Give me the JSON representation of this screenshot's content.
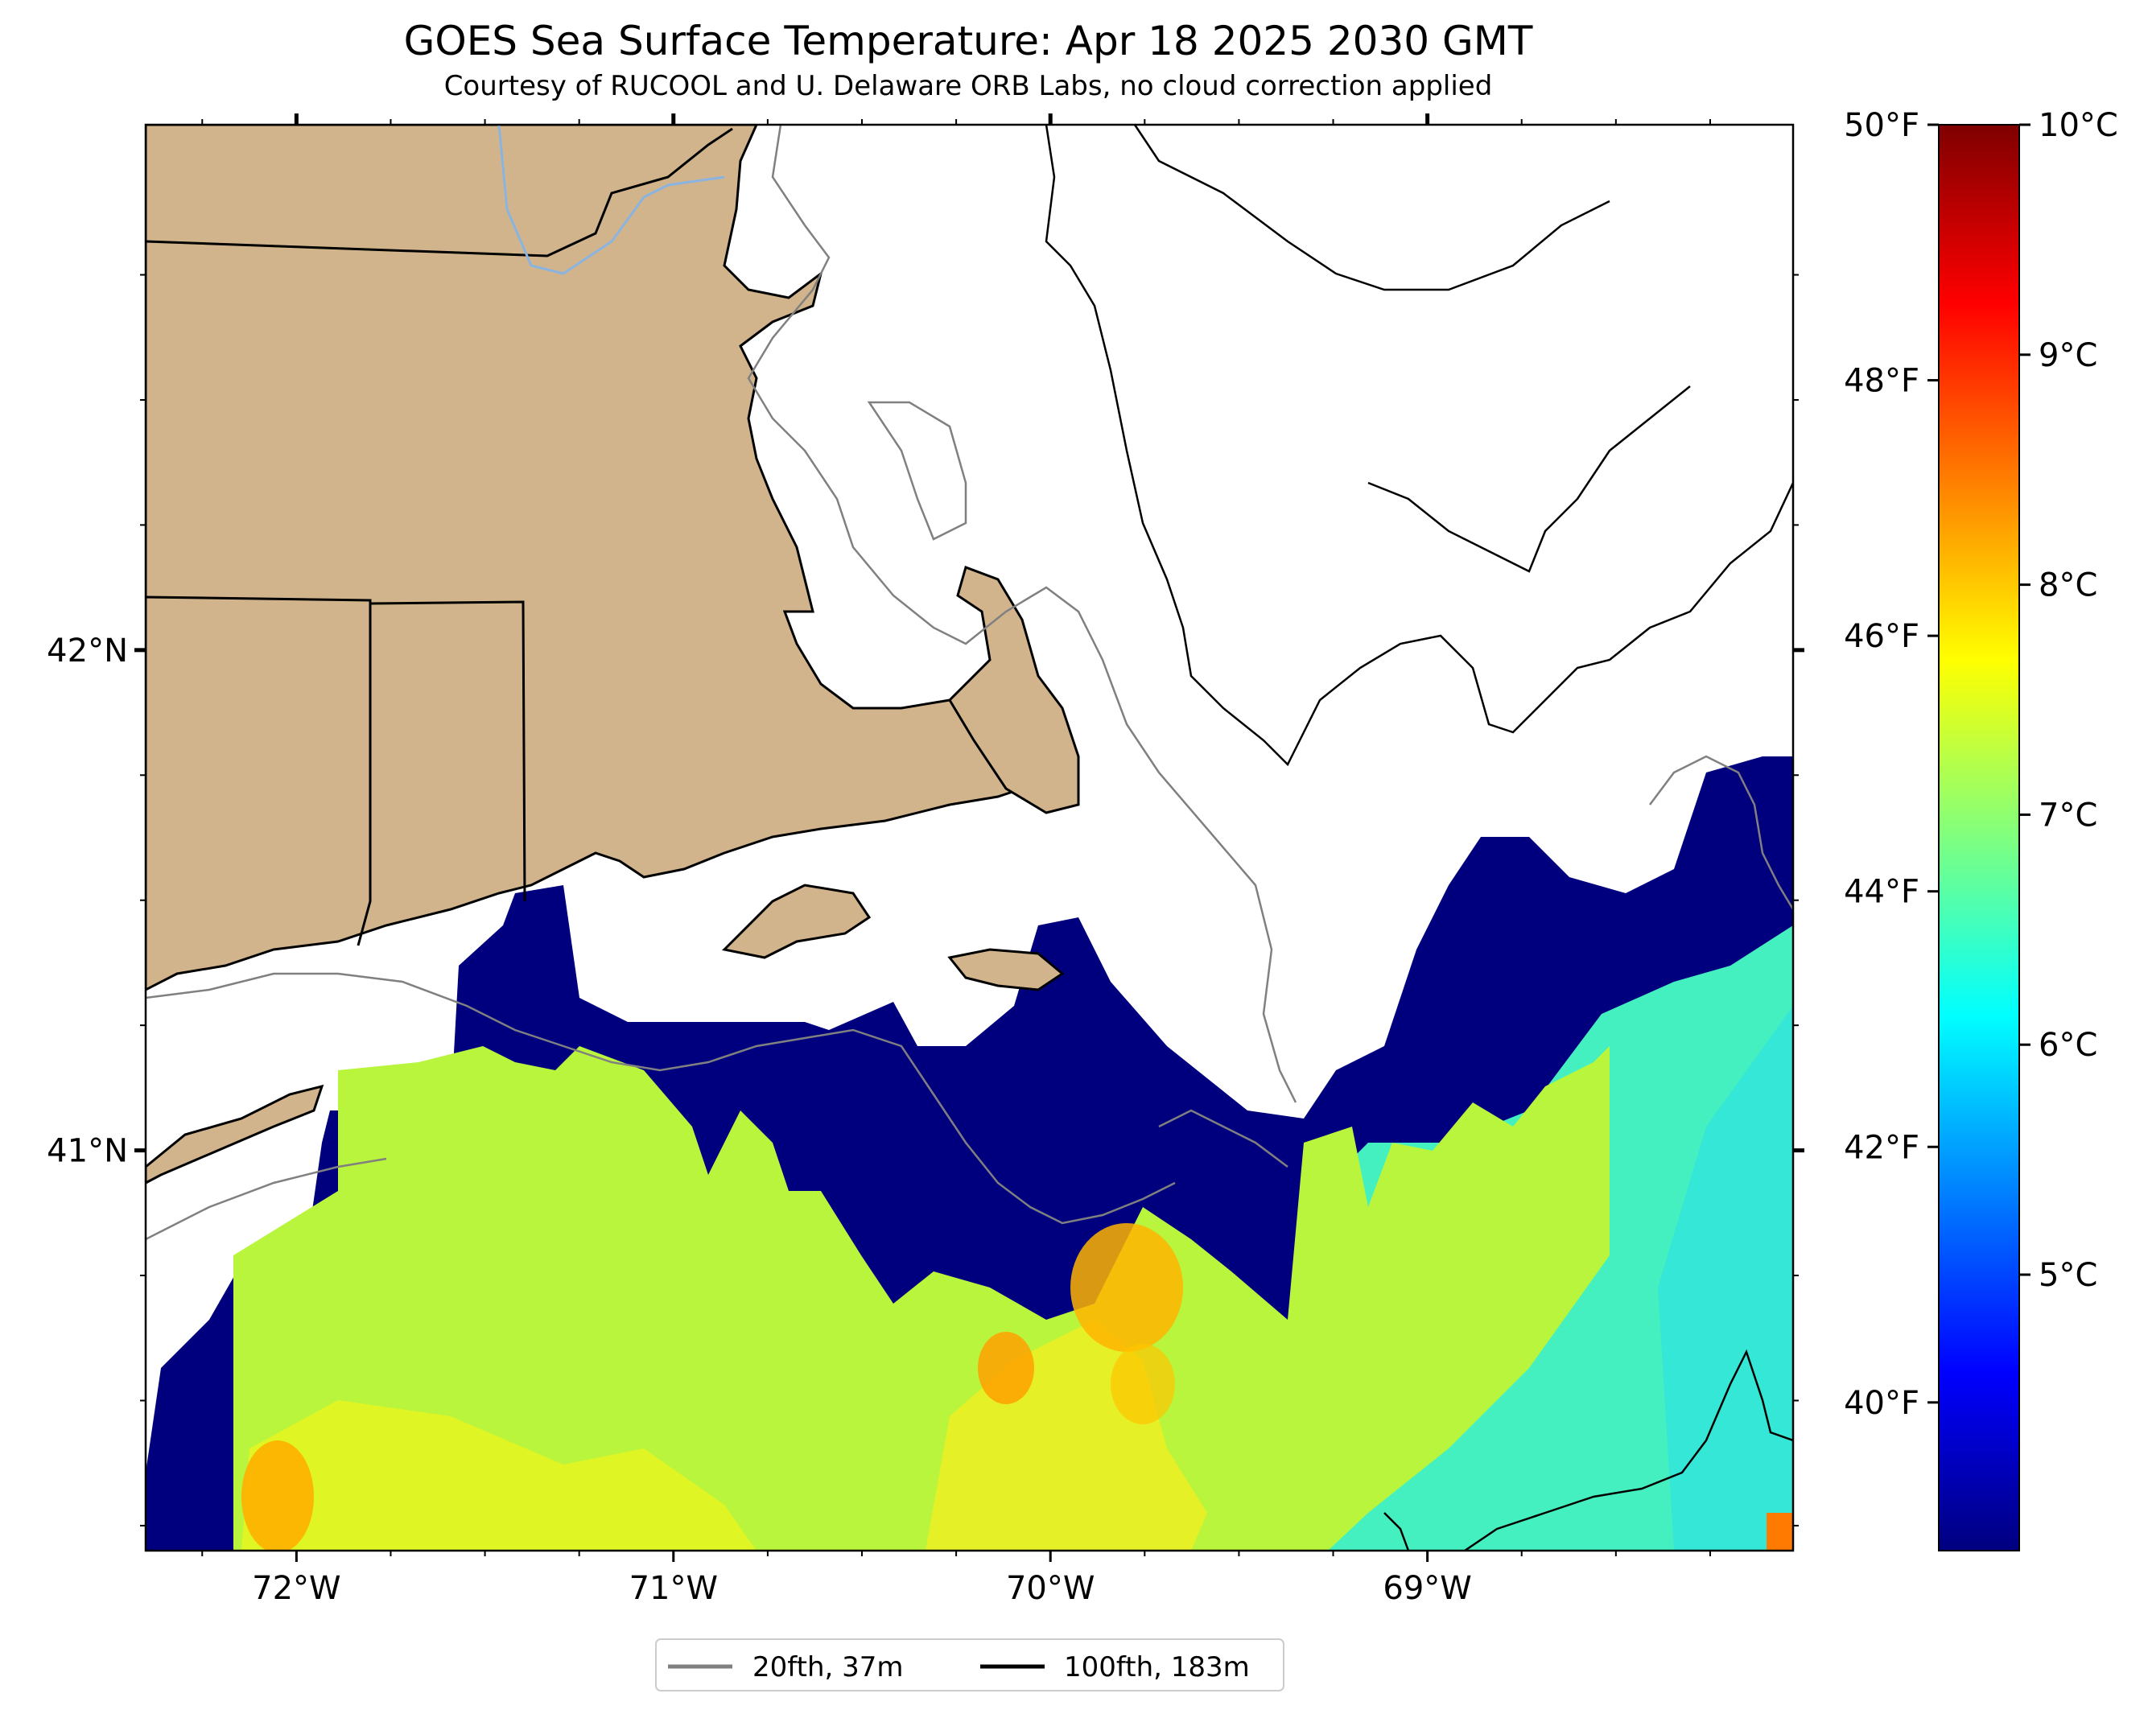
{
  "header": {
    "title": "GOES Sea Surface Temperature: Apr 18 2025 2030 GMT",
    "subtitle": "Courtesy of RUCOOL and U. Delaware ORB Labs, no cloud correction applied"
  },
  "axes": {
    "x_ticks": [
      {
        "lon": -72,
        "label": "72°W"
      },
      {
        "lon": -71,
        "label": "71°W"
      },
      {
        "lon": -70,
        "label": "70°W"
      },
      {
        "lon": -69,
        "label": "69°W"
      }
    ],
    "y_ticks": [
      {
        "lat": 42,
        "label": "42°N"
      },
      {
        "lat": 41,
        "label": "41°N"
      }
    ],
    "lon_range": [
      -72.4,
      -68.03
    ],
    "lat_range": [
      40.2,
      43.05
    ]
  },
  "colorbar": {
    "celsius_labels": [
      "10°C",
      "9°C",
      "8°C",
      "7°C",
      "6°C",
      "5°C"
    ],
    "fahrenheit_labels": [
      "50°F",
      "48°F",
      "46°F",
      "44°F",
      "42°F",
      "40°F"
    ],
    "range_c": [
      3.8,
      10.0
    ],
    "colors": [
      "#00007f",
      "#0000ff",
      "#007fff",
      "#00ffff",
      "#7fff7f",
      "#ffff00",
      "#ff7f00",
      "#ff0000",
      "#7f0000"
    ]
  },
  "legend": {
    "items": [
      {
        "label": "20fth, 37m",
        "color": "#808080"
      },
      {
        "label": "100fth, 183m",
        "color": "#000000"
      }
    ]
  },
  "colors": {
    "land": "#d2b48c",
    "no_data": "#ffffff",
    "cold": "#00007f"
  }
}
